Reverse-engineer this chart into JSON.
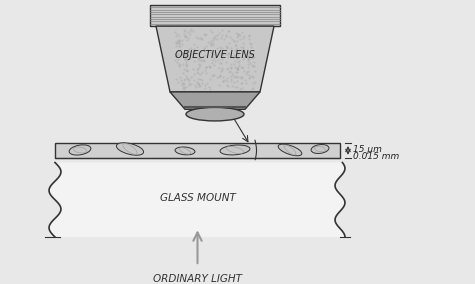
{
  "bg_color": "#e8e8e8",
  "line_color": "#333333",
  "fill_gray_light": "#c8c8c8",
  "fill_gray_medium": "#a0a0a0",
  "fill_gray_dark": "#787878",
  "fill_white": "#f5f5f5",
  "title_obj_lens": "OBJECTIVE LENS",
  "label_glass_mount": "GLASS MOUNT",
  "label_ordinary_light": "ORDINARY LIGHT",
  "label_thickness_um": "15 μm",
  "label_thickness_mm": "0.015 mm"
}
